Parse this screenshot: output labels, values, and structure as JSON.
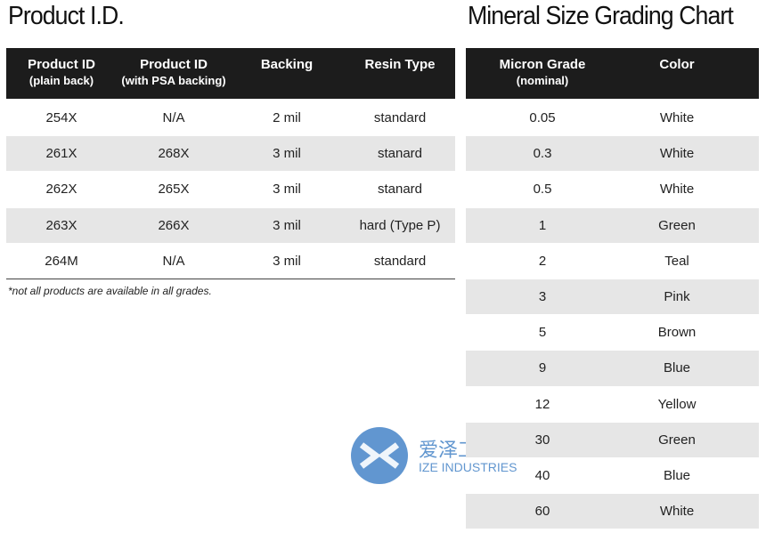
{
  "product_table": {
    "title": "Product I.D.",
    "headers": [
      [
        "Product ID",
        "(plain back)"
      ],
      [
        "Product ID",
        "(with PSA backing)"
      ],
      [
        "Backing"
      ],
      [
        "Resin Type"
      ]
    ],
    "rows": [
      [
        "254X",
        "N/A",
        "2 mil",
        "standard"
      ],
      [
        "261X",
        "268X",
        "3 mil",
        "stanard"
      ],
      [
        "262X",
        "265X",
        "3 mil",
        "stanard"
      ],
      [
        "263X",
        "266X",
        "3 mil",
        "hard (Type P)"
      ],
      [
        "264M",
        "N/A",
        "3 mil",
        "standard"
      ]
    ],
    "footnote": "*not all products are available in all grades."
  },
  "grading_table": {
    "title": "Mineral Size Grading Chart",
    "headers": [
      [
        "Micron Grade",
        "(nominal)"
      ],
      [
        "Color"
      ]
    ],
    "rows": [
      [
        "0.05",
        "White"
      ],
      [
        "0.3",
        "White"
      ],
      [
        "0.5",
        "White"
      ],
      [
        "1",
        "Green"
      ],
      [
        "2",
        "Teal"
      ],
      [
        "3",
        "Pink"
      ],
      [
        "5",
        "Brown"
      ],
      [
        "9",
        "Blue"
      ],
      [
        "12",
        "Yellow"
      ],
      [
        "30",
        "Green"
      ],
      [
        "40",
        "Blue"
      ],
      [
        "60",
        "White"
      ]
    ]
  },
  "watermark": {
    "name": "爱泽工业",
    "subtitle": "IZE INDUSTRIES"
  }
}
